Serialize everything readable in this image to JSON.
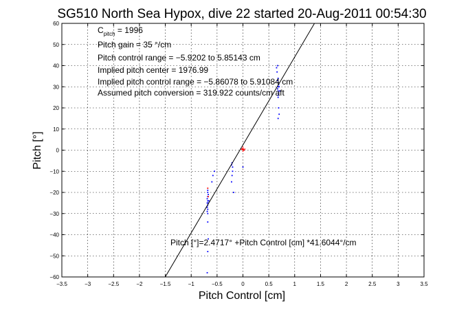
{
  "chart_data": {
    "type": "scatter",
    "title": "SG510 North Sea Hypox, dive 22 started 20-Aug-2011 00:54:30",
    "xlabel": "Pitch Control [cm]",
    "ylabel": "Pitch [°]",
    "xlim": [
      -3.5,
      3.5
    ],
    "ylim": [
      -60,
      60
    ],
    "xticks": [
      "−3.5",
      "−3",
      "−2.5",
      "−2",
      "−1.5",
      "−1",
      "−0.5",
      "0",
      "0.5",
      "1",
      "1.5",
      "2",
      "2.5",
      "3",
      "3.5"
    ],
    "yticks": [
      "60",
      "50",
      "40",
      "30",
      "20",
      "10",
      "0",
      "−10",
      "−20",
      "−30",
      "−40",
      "−50",
      "−60"
    ],
    "grid": true,
    "annotations": {
      "c_pitch_main": "C",
      "c_pitch_sub": "pitch",
      "c_pitch_value": " = 1996",
      "line2": "Pitch gain = 35 °/cm",
      "line3": "Pitch control range = −5.9202 to 5.85143 cm",
      "line4": "Implied pitch center = 1976.99",
      "line5": "Implied pitch control range = −5.86078 to 5.91084 cm",
      "line6": "Assumed pitch conversion = 319.922 counts/cm aft",
      "fit_label": "Pitch [°]=2.4717° +Pitch Control [cm] *41.6044°/cm"
    },
    "fit_line": {
      "intercept": 2.4717,
      "slope": 41.6044,
      "color": "#000000"
    },
    "series": [
      {
        "color": "#0000ff",
        "points": [
          [
            -0.68,
            -28
          ],
          [
            -0.69,
            -27
          ],
          [
            -0.68,
            -26
          ],
          [
            -0.69,
            -25
          ],
          [
            -0.68,
            -24
          ],
          [
            -0.69,
            -23
          ],
          [
            -0.68,
            -22
          ],
          [
            -0.67,
            -21
          ],
          [
            -0.68,
            -20
          ],
          [
            -0.68,
            -19
          ],
          [
            -0.67,
            -25
          ],
          [
            -0.66,
            -24
          ],
          [
            -0.7,
            -27
          ],
          [
            -0.69,
            -29
          ],
          [
            -0.68,
            -30
          ],
          [
            -0.68,
            -34
          ],
          [
            -0.67,
            -42
          ],
          [
            -0.68,
            -48
          ],
          [
            -0.69,
            -58
          ],
          [
            -0.6,
            -15
          ],
          [
            -0.58,
            -12
          ],
          [
            -0.55,
            -10
          ],
          [
            -0.22,
            -7
          ],
          [
            -0.21,
            -6
          ],
          [
            -0.2,
            -8
          ],
          [
            -0.2,
            -10
          ],
          [
            -0.21,
            -12
          ],
          [
            -0.22,
            -15
          ],
          [
            -0.18,
            -20
          ],
          [
            0.68,
            34
          ],
          [
            0.67,
            33
          ],
          [
            0.68,
            32
          ],
          [
            0.69,
            31
          ],
          [
            0.68,
            30
          ],
          [
            0.67,
            29
          ],
          [
            0.68,
            28
          ],
          [
            0.69,
            27
          ],
          [
            0.68,
            26
          ],
          [
            0.7,
            30
          ],
          [
            0.71,
            28
          ],
          [
            0.66,
            37
          ],
          [
            0.65,
            39
          ],
          [
            0.67,
            40
          ],
          [
            0.68,
            25
          ],
          [
            0.69,
            20
          ],
          [
            0.7,
            17
          ],
          [
            0.68,
            15
          ],
          [
            0.0,
            -8
          ]
        ]
      },
      {
        "color": "#ff0000",
        "points": [
          [
            -0.68,
            -18
          ],
          [
            -0.67,
            -22
          ],
          [
            0.0,
            0.5
          ],
          [
            0.02,
            0.0
          ],
          [
            -0.02,
            0.5
          ]
        ]
      }
    ]
  }
}
